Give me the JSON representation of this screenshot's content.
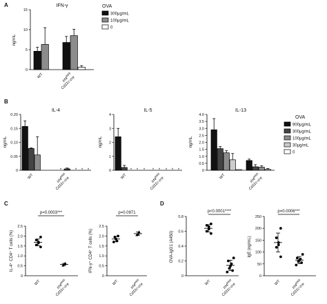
{
  "chart_data": [
    {
      "panel": "A",
      "type": "bar",
      "title": "IFN-γ",
      "ylabel": "ng/mL",
      "ylim": [
        0,
        15
      ],
      "yticks": [
        "0",
        "5",
        "10",
        "15"
      ],
      "categories": [
        "WT",
        "Irf4fl/fl/fl x Cd11c-cre"
      ],
      "legend_title": "OVA",
      "legend_position": "right",
      "series": [
        {
          "name": "300μg/mL",
          "color": "#111111",
          "values": [
            4.6,
            6.8
          ],
          "errors": [
            1.0,
            1.5
          ]
        },
        {
          "name": "100μg/mL",
          "color": "#8c8c8c",
          "values": [
            6.3,
            8.5
          ],
          "errors": [
            4.2,
            1.6
          ]
        },
        {
          "name": "0",
          "color": "#ffffff",
          "values": [
            0,
            0.6
          ],
          "errors": [
            0,
            0.4
          ]
        }
      ]
    },
    {
      "panel": "B",
      "type": "bar",
      "title": "IL-4",
      "ylabel": "ng/mL",
      "ylim": [
        0,
        0.2
      ],
      "yticks": [
        "0",
        "0.05",
        "0.10",
        "0.15",
        "0.20"
      ],
      "categories": [
        "WT",
        "Irf4fl/fl/fl x Cd11c-cre"
      ],
      "series": [
        {
          "name": "900μg/mL",
          "values": [
            0.157,
            0.0
          ],
          "errors": [
            0.02,
            0.0
          ]
        },
        {
          "name": "300μg/mL",
          "values": [
            0.078,
            0.005
          ],
          "errors": [
            0.002,
            0.003
          ]
        },
        {
          "name": "100μg/mL",
          "values": [
            0.055,
            0.0
          ],
          "errors": [
            0.065,
            0.0
          ]
        },
        {
          "name": "30μg/mL",
          "values": [
            0.0,
            0.0
          ],
          "errors": [
            0.0,
            0.0
          ]
        },
        {
          "name": "0",
          "values": [
            0.0,
            0.0
          ],
          "errors": [
            0.0,
            0.0
          ]
        }
      ],
      "annotations": [
        "*",
        "*",
        "*",
        "*",
        "*"
      ]
    },
    {
      "panel": "B",
      "type": "bar",
      "title": "IL-5",
      "ylabel": "ng/mL",
      "ylim": [
        0,
        4
      ],
      "yticks": [
        "0",
        "1",
        "2",
        "3",
        "4"
      ],
      "categories": [
        "WT",
        "Irf4fl/fl/fl x Cd11c-cre"
      ],
      "series": [
        {
          "name": "900μg/mL",
          "values": [
            2.4,
            0.0
          ],
          "errors": [
            0.6,
            0.0
          ]
        },
        {
          "name": "300μg/mL",
          "values": [
            0.2,
            0.0
          ],
          "errors": [
            0.15,
            0.0
          ]
        },
        {
          "name": "100μg/mL",
          "values": [
            0.0,
            0.0
          ],
          "errors": [
            0.0,
            0.0
          ]
        },
        {
          "name": "30μg/mL",
          "values": [
            0.0,
            0.0
          ],
          "errors": [
            0.0,
            0.0
          ]
        },
        {
          "name": "0",
          "values": [
            0.0,
            0.0
          ],
          "errors": [
            0.0,
            0.0
          ]
        }
      ],
      "annotations": [
        "*",
        "*",
        "*",
        "*",
        "*",
        "*",
        "*",
        "*"
      ]
    },
    {
      "panel": "B",
      "type": "bar",
      "title": "IL-13",
      "ylabel": "ng/mL",
      "ylim": [
        0,
        4
      ],
      "yticks": [
        "0",
        "0.5",
        "1.0",
        "1.5",
        "2.0",
        "2.5",
        "3.0",
        "3.5",
        "4.0"
      ],
      "categories": [
        "WT",
        "Irf4fl/fl/fl x Cd11c-cre"
      ],
      "legend_title": "OVA",
      "legend_position": "right",
      "series": [
        {
          "name": "900μg/mL",
          "color": "#111111",
          "values": [
            2.9,
            0.7
          ],
          "errors": [
            0.8,
            0.1
          ]
        },
        {
          "name": "300μg/mL",
          "color": "#444444",
          "values": [
            1.55,
            0.25
          ],
          "errors": [
            0.15,
            0.15
          ]
        },
        {
          "name": "100μg/mL",
          "color": "#8c8c8c",
          "values": [
            1.25,
            0.22
          ],
          "errors": [
            0.15,
            0.1
          ]
        },
        {
          "name": "30μg/mL",
          "color": "#cccccc",
          "values": [
            0.75,
            0.07
          ],
          "errors": [
            0.45,
            0.05
          ]
        },
        {
          "name": "0",
          "color": "#ffffff",
          "values": [
            0.05,
            0.0
          ],
          "errors": [
            0.0,
            0.0
          ]
        }
      ]
    },
    {
      "panel": "C",
      "type": "scatter",
      "ylabel": "IL-4⁺ CD4⁺ T cells (%)",
      "ylim": [
        0,
        2.5
      ],
      "yticks": [
        "0",
        "0.5",
        "1.0",
        "1.5",
        "2.0",
        "2.5"
      ],
      "categories": [
        "WT",
        "Irf4fl/fl/fl x Cd11c-cre"
      ],
      "pvalue": "p=0.0003***",
      "groups": [
        {
          "marker": "circle",
          "points": [
            1.95,
            1.8,
            1.7,
            1.65,
            1.55,
            1.45
          ],
          "mean": 1.68,
          "sd": 0.17
        },
        {
          "marker": "triangle",
          "points": [
            0.62,
            0.58,
            0.52
          ],
          "mean": 0.57,
          "sd": 0.05
        }
      ]
    },
    {
      "panel": "C",
      "type": "scatter",
      "ylabel": "IFN-γ⁺ CD4⁺ T cells (%)",
      "ylim": [
        0,
        2.5
      ],
      "yticks": [
        "0",
        "0.5",
        "1.0",
        "1.5",
        "2.0",
        "2.5"
      ],
      "categories": [
        "WT",
        "Irf4fl/fl/fl x Cd11c-cre"
      ],
      "pvalue": "p=0.0971",
      "groups": [
        {
          "marker": "circle",
          "points": [
            2.0,
            1.95,
            1.85,
            1.75,
            1.7
          ],
          "mean": 1.85,
          "sd": 0.13
        },
        {
          "marker": "triangle",
          "points": [
            2.2,
            2.1,
            2.05
          ],
          "mean": 2.12,
          "sd": 0.08
        }
      ]
    },
    {
      "panel": "D",
      "type": "scatter",
      "ylabel": "OVA-IgG1 (A450)",
      "ylim": [
        0,
        0.8
      ],
      "yticks": [
        "0",
        "0.2",
        "0.4",
        "0.6",
        "0.8"
      ],
      "categories": [
        "WT",
        "Irf4fl/fl/fl x Cd11c-cre"
      ],
      "pvalue": "p<0.0001****",
      "groups": [
        {
          "marker": "circle",
          "points": [
            0.7,
            0.68,
            0.66,
            0.63,
            0.6,
            0.57
          ],
          "mean": 0.64,
          "sd": 0.05
        },
        {
          "marker": "circle",
          "points": [
            0.24,
            0.2,
            0.16,
            0.13,
            0.1,
            0.07,
            0.05
          ],
          "mean": 0.14,
          "sd": 0.07
        }
      ]
    },
    {
      "panel": "D",
      "type": "scatter",
      "ylabel": "IgE (ng/mL)",
      "ylim": [
        0,
        250
      ],
      "yticks": [
        "0",
        "50",
        "100",
        "150",
        "200",
        "250"
      ],
      "categories": [
        "WT",
        "Irf4fl/fl/fl x Cd11c-cre"
      ],
      "pvalue": "p=0.0006***",
      "groups": [
        {
          "marker": "circle",
          "points": [
            200,
            160,
            140,
            130,
            120,
            80
          ],
          "mean": 140,
          "sd": 40
        },
        {
          "marker": "circle",
          "points": [
            90,
            75,
            70,
            65,
            60,
            55,
            45
          ],
          "mean": 66,
          "sd": 15
        }
      ]
    }
  ],
  "labels": {
    "panel_a": "A",
    "panel_b": "B",
    "panel_c": "C",
    "panel_d": "D",
    "wt": "WT",
    "ko_line1": "Irf4",
    "ko_sup": "fl/fl/fl",
    "ko_line2": "Cd11c-cre"
  }
}
